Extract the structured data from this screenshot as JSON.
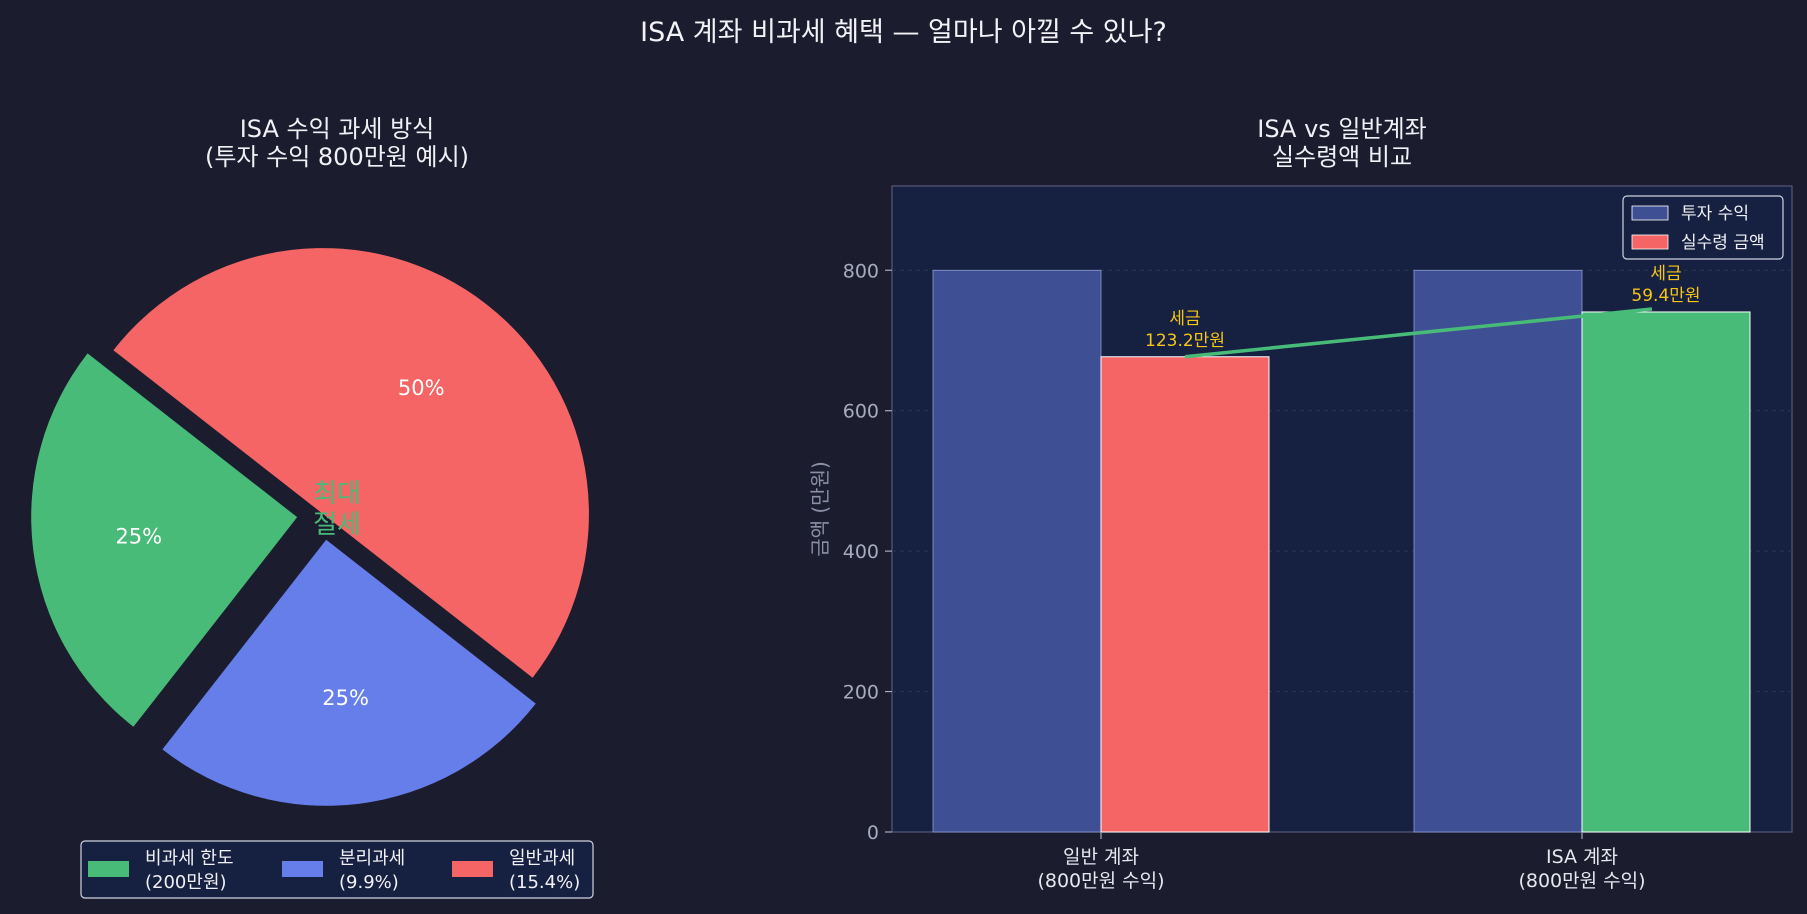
{
  "suptitle": "ISA 계좌 비과세 혜택 — 얼마나 아낄 수 있나?",
  "colors": {
    "background": "#1b1c2e",
    "axes_bg": "#162040",
    "green": "#48bb78",
    "blue": "#667eea",
    "red": "#f56565",
    "navy_bar": "#3f4f94",
    "gold": "#f5c518"
  },
  "chart_data": [
    {
      "type": "pie",
      "title_lines": [
        "ISA 수익 과세 방식",
        "(투자 수익 800만원 예시)"
      ],
      "slices": [
        {
          "label_lines": [
            "비과세 한도",
            "(200만원)"
          ],
          "value": 25,
          "pct_label": "25%",
          "color": "#48bb78"
        },
        {
          "label_lines": [
            "분리과세",
            "(9.9%)"
          ],
          "value": 25,
          "pct_label": "25%",
          "color": "#667eea"
        },
        {
          "label_lines": [
            "일반과세",
            "(15.4%)"
          ],
          "value": 50,
          "pct_label": "50%",
          "color": "#f56565"
        }
      ],
      "center_annotation_lines": [
        "최대",
        "절세"
      ],
      "legend_position": "bottom-center"
    },
    {
      "type": "bar",
      "title_lines": [
        "ISA vs 일반계좌",
        "실수령액 비교"
      ],
      "categories": [
        {
          "label_lines": [
            "일반 계좌",
            "(800만원 수익)"
          ]
        },
        {
          "label_lines": [
            "ISA 계좌",
            "(800만원 수익)"
          ]
        }
      ],
      "series": [
        {
          "name": "투자 수익",
          "values": [
            800,
            800
          ],
          "colors": [
            "#3f4f94",
            "#3f4f94"
          ]
        },
        {
          "name": "실수령 금액",
          "values": [
            676.8,
            740.6
          ],
          "colors": [
            "#f56565",
            "#48bb78"
          ]
        }
      ],
      "annotations": [
        {
          "lines": [
            "세금",
            "123.2만원"
          ]
        },
        {
          "lines": [
            "세금",
            "59.4만원"
          ]
        }
      ],
      "ylabel": "금액 (만원)",
      "yticks": [
        0,
        200,
        400,
        600,
        800
      ],
      "ylim": [
        0,
        920
      ],
      "grid": true,
      "legend_position": "top-right",
      "connector_line_color": "#48bb78"
    }
  ]
}
